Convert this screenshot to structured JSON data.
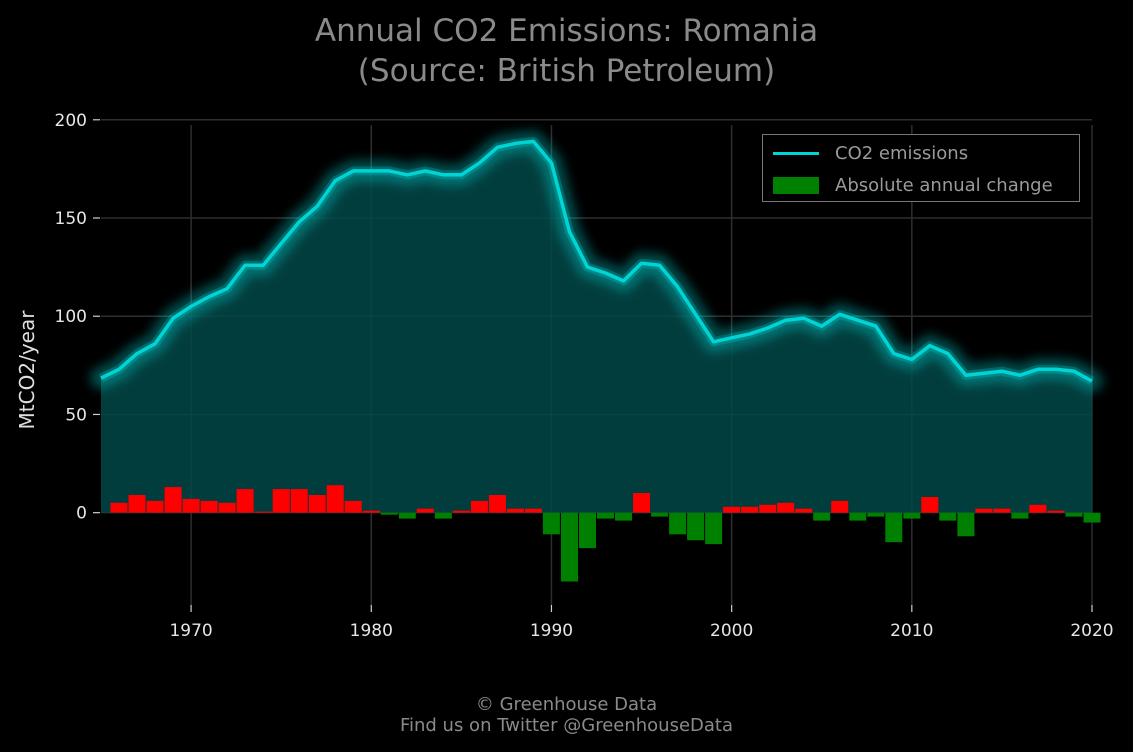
{
  "title_line1": "Annual CO2 Emissions: Romania",
  "title_line2": "(Source: British Petroleum)",
  "footer_line1": "© Greenhouse Data",
  "footer_line2": "Find us on Twitter @GreenhouseData",
  "colors": {
    "line": "#00d5d5",
    "fill": "#024848",
    "increase": "#ff0000",
    "decrease": "#008000",
    "background": "#000000",
    "grid": "#2e2e2e"
  },
  "chart_data": {
    "type": "line",
    "title": "Annual CO2 Emissions: Romania (Source: British Petroleum)",
    "ylabel": "MtCO2/year",
    "xlabel": "",
    "xlim": [
      1965,
      2020
    ],
    "ylim": [
      -47,
      206
    ],
    "x_ticks": [
      1970,
      1980,
      1990,
      2000,
      2010,
      2020
    ],
    "y_ticks": [
      0,
      50,
      100,
      150,
      200
    ],
    "grid": true,
    "legend_position": "top-right",
    "series": [
      {
        "name": "CO2 emissions",
        "kind": "line",
        "x": [
          1965,
          1966,
          1967,
          1968,
          1969,
          1970,
          1971,
          1972,
          1973,
          1974,
          1975,
          1976,
          1977,
          1978,
          1979,
          1980,
          1981,
          1982,
          1983,
          1984,
          1985,
          1986,
          1987,
          1988,
          1989,
          1990,
          1991,
          1992,
          1993,
          1994,
          1995,
          1996,
          1997,
          1998,
          1999,
          2000,
          2001,
          2002,
          2003,
          2004,
          2005,
          2006,
          2007,
          2008,
          2009,
          2010,
          2011,
          2012,
          2013,
          2014,
          2015,
          2016,
          2017,
          2018,
          2019,
          2020
        ],
        "values": [
          68.5,
          73,
          81,
          86,
          99,
          105,
          110,
          114,
          126,
          126,
          137,
          148,
          156,
          169,
          174,
          174,
          174,
          172,
          174,
          172,
          172,
          178,
          186,
          188,
          189,
          178,
          143,
          125,
          122,
          118,
          127,
          126,
          115,
          101,
          87,
          89,
          91,
          94,
          98,
          99,
          95,
          101,
          98,
          95,
          81,
          78,
          85,
          81,
          70,
          71,
          72,
          70,
          73,
          73,
          72,
          67
        ]
      },
      {
        "name": "Absolute annual change",
        "kind": "bar",
        "x": [
          1966,
          1967,
          1968,
          1969,
          1970,
          1971,
          1972,
          1973,
          1974,
          1975,
          1976,
          1977,
          1978,
          1979,
          1980,
          1981,
          1982,
          1983,
          1984,
          1985,
          1986,
          1987,
          1988,
          1989,
          1990,
          1991,
          1992,
          1993,
          1994,
          1995,
          1996,
          1997,
          1998,
          1999,
          2000,
          2001,
          2002,
          2003,
          2004,
          2005,
          2006,
          2007,
          2008,
          2009,
          2010,
          2011,
          2012,
          2013,
          2014,
          2015,
          2016,
          2017,
          2018,
          2019,
          2020
        ],
        "values": [
          5,
          9,
          6,
          13,
          7,
          6,
          5,
          12,
          0.5,
          12,
          12,
          9,
          14,
          6,
          1,
          -1,
          -3,
          2,
          -3,
          1,
          6,
          9,
          2,
          2,
          -11,
          -35,
          -18,
          -3,
          -4,
          10,
          -2,
          -11,
          -14,
          -16,
          3,
          3,
          4,
          5,
          2,
          -4,
          6,
          -4,
          -2,
          -15,
          -3,
          8,
          -4,
          -12,
          2,
          2,
          -3,
          4,
          1,
          -2,
          -5
        ]
      }
    ],
    "legend": [
      "CO2 emissions",
      "Absolute annual change"
    ]
  }
}
